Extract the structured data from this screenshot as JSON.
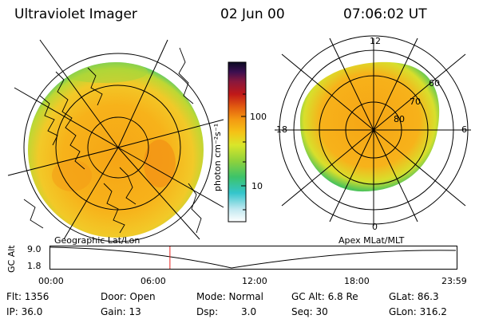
{
  "header": {
    "title": "Ultraviolet Imager",
    "date": "02 Jun 00",
    "time": "07:06:02 UT"
  },
  "colorbar": {
    "label": "photon cm⁻²s⁻¹",
    "ticks": [
      "100",
      "10"
    ],
    "scale": "log",
    "colors": [
      "#ffffff",
      "#bfe8f0",
      "#34c5cc",
      "#3cc36a",
      "#8ed23c",
      "#d9e62a",
      "#f5c316",
      "#f49a12",
      "#e25b10",
      "#c01818",
      "#88183d",
      "#3a0f50",
      "#0a0a22"
    ]
  },
  "geo_panel": {
    "caption": "Geographic Lat/Lon"
  },
  "polar_panel": {
    "caption": "Apex MLat/MLT",
    "mlt_labels": {
      "top": "12",
      "left": "18",
      "right": "6",
      "bottom": "0"
    },
    "lat_labels": [
      "60",
      "70",
      "80"
    ]
  },
  "alt_plot": {
    "ylabel": "GC Alt",
    "ymax": "9.0",
    "ymin": "1.8",
    "x_ticks": [
      "00:00",
      "06:00",
      "12:00",
      "18:00",
      "23:59"
    ],
    "current_time_hours": 7.1
  },
  "status": {
    "flt": "Flt: 1356",
    "ip": "IP: 36.0",
    "door": "Door: Open",
    "gain": "Gain: 13",
    "mode": "Mode: Normal",
    "dsp_label": "Dsp:",
    "dsp_value": "3.0",
    "gc_alt": "GC Alt: 6.8 Re",
    "seq": "Seq: 30",
    "glat": "GLat: 86.3",
    "glon": "GLon: 316.2"
  }
}
